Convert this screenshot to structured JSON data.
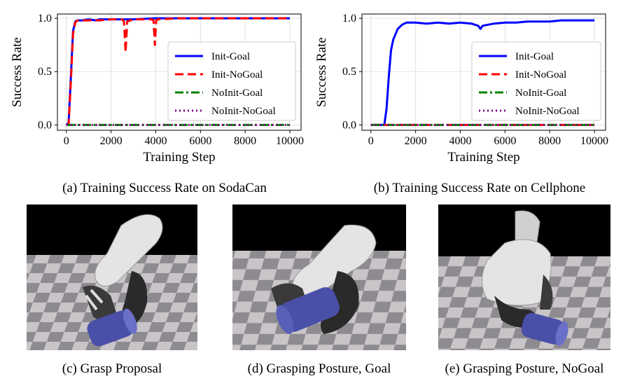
{
  "charts": {
    "a": {
      "caption": "(a) Training Success Rate on SodaCan",
      "chart_data": {
        "type": "line",
        "title": "",
        "xlabel": "Training Step",
        "ylabel": "Success Rate",
        "xlim": [
          -400,
          10500
        ],
        "ylim": [
          -0.05,
          1.04
        ],
        "xticks": [
          0,
          2000,
          4000,
          6000,
          8000,
          10000
        ],
        "xtick_labels": [
          "0",
          "2000",
          "4000",
          "6000",
          "8000",
          "10000"
        ],
        "yticks": [
          0.0,
          0.5,
          1.0
        ],
        "ytick_labels": [
          "0.0",
          "0.5",
          "1.0"
        ],
        "grid": true,
        "legend_position": "lower-right",
        "series": [
          {
            "name": "Init-Goal",
            "color": "#0000ff",
            "style": "solid",
            "x": [
              0,
              100,
              200,
              300,
              400,
              500,
              700,
              1000,
              1300,
              1500,
              2000,
              3000,
              4000,
              5000,
              6000,
              7000,
              8000,
              9000,
              10000
            ],
            "y": [
              0.0,
              0.02,
              0.45,
              0.88,
              0.97,
              0.98,
              0.98,
              0.99,
              0.98,
              0.99,
              0.99,
              0.99,
              1.0,
              1.0,
              1.0,
              1.0,
              1.0,
              1.0,
              1.0
            ]
          },
          {
            "name": "Init-NoGoal",
            "color": "#ff0000",
            "style": "dashed",
            "x": [
              0,
              100,
              200,
              300,
              400,
              500,
              1000,
              1500,
              2000,
              2500,
              2580,
              2650,
              2720,
              3000,
              3800,
              3900,
              3960,
              4020,
              4100,
              5000,
              6000,
              8000,
              10000
            ],
            "y": [
              0.0,
              0.0,
              0.4,
              0.85,
              0.96,
              0.98,
              0.98,
              0.98,
              0.99,
              0.99,
              0.97,
              0.68,
              0.97,
              0.99,
              0.99,
              0.98,
              0.75,
              0.98,
              0.99,
              1.0,
              1.0,
              1.0,
              1.0
            ]
          },
          {
            "name": "NoInit-Goal",
            "color": "#008000",
            "style": "dashdot",
            "x": [
              0,
              10000
            ],
            "y": [
              0.0,
              0.0
            ]
          },
          {
            "name": "NoInit-NoGoal",
            "color": "#800080",
            "style": "dotted",
            "x": [
              0,
              10000
            ],
            "y": [
              0.0,
              0.0
            ]
          }
        ]
      }
    },
    "b": {
      "caption": "(b) Training Success Rate on Cellphone",
      "chart_data": {
        "type": "line",
        "title": "",
        "xlabel": "Training Step",
        "ylabel": "Success Rate",
        "xlim": [
          -400,
          10500
        ],
        "ylim": [
          -0.05,
          1.04
        ],
        "xticks": [
          0,
          2000,
          4000,
          6000,
          8000,
          10000
        ],
        "xtick_labels": [
          "0",
          "2000",
          "4000",
          "6000",
          "8000",
          "10000"
        ],
        "yticks": [
          0.0,
          0.5,
          1.0
        ],
        "ytick_labels": [
          "0.0",
          "0.5",
          "1.0"
        ],
        "grid": true,
        "legend_position": "lower-right",
        "series": [
          {
            "name": "Init-Goal",
            "color": "#0000ff",
            "style": "solid",
            "x": [
              0,
              600,
              700,
              800,
              900,
              1000,
              1200,
              1400,
              1600,
              2000,
              2500,
              3000,
              3500,
              4000,
              4500,
              4800,
              4900,
              5000,
              5500,
              6000,
              6500,
              7000,
              7500,
              8000,
              8500,
              9000,
              9500,
              10000
            ],
            "y": [
              0.0,
              0.0,
              0.15,
              0.45,
              0.7,
              0.8,
              0.9,
              0.94,
              0.96,
              0.96,
              0.95,
              0.96,
              0.95,
              0.96,
              0.95,
              0.93,
              0.9,
              0.93,
              0.95,
              0.96,
              0.96,
              0.97,
              0.97,
              0.97,
              0.98,
              0.98,
              0.98,
              0.98
            ]
          },
          {
            "name": "Init-NoGoal",
            "color": "#ff0000",
            "style": "dashed",
            "x": [
              0,
              10000
            ],
            "y": [
              0.0,
              0.0
            ]
          },
          {
            "name": "NoInit-Goal",
            "color": "#008000",
            "style": "dashdot",
            "x": [
              0,
              10000
            ],
            "y": [
              0.0,
              0.0
            ]
          },
          {
            "name": "NoInit-NoGoal",
            "color": "#800080",
            "style": "dotted",
            "x": [
              0,
              10000
            ],
            "y": [
              0.0,
              0.0
            ]
          }
        ]
      }
    }
  },
  "panels": {
    "c": {
      "caption": "(c) Grasp Proposal"
    },
    "d": {
      "caption": "(d) Grasping Posture, Goal"
    },
    "e": {
      "caption": "(e) Grasping Posture, NoGoal"
    }
  },
  "colors": {
    "sky": "#000000",
    "floor_light": "#c8c4c7",
    "floor_dark": "#8e8b90",
    "hand_white": "#e4e4e4",
    "hand_dark": "#2a2a2a",
    "can_blue": "#4a50a8"
  }
}
